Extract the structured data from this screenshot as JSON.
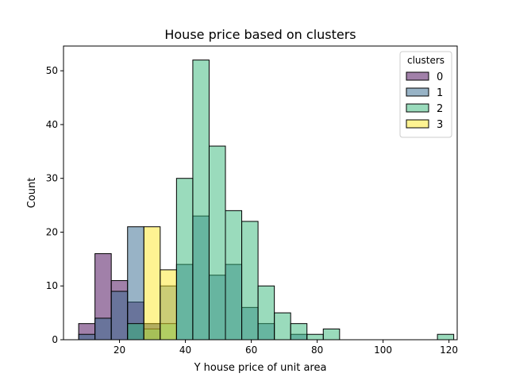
{
  "chart_data": {
    "type": "histogram",
    "title": "House price based on clusters",
    "xlabel": "Y house price of unit area",
    "ylabel": "Count",
    "xlim": [
      3.0,
      122.5
    ],
    "ylim": [
      0,
      54.6
    ],
    "xticks": [
      20,
      40,
      60,
      80,
      100,
      120
    ],
    "yticks": [
      0,
      10,
      20,
      30,
      40,
      50
    ],
    "bin_edges": [
      7.6,
      12.55,
      17.5,
      22.45,
      27.4,
      32.35,
      37.3,
      42.25,
      47.2,
      52.15,
      57.1,
      62.05,
      67.0,
      71.95,
      76.9,
      81.85,
      86.8,
      91.75,
      96.7,
      101.65,
      106.6,
      111.55,
      116.5,
      121.45
    ],
    "legend": {
      "title": "clusters",
      "placement": "top-right"
    },
    "series": [
      {
        "name": "0",
        "color": "#440154",
        "counts": [
          3,
          16,
          11,
          7,
          3,
          0,
          0,
          0,
          0,
          0,
          0,
          0,
          0,
          0,
          0,
          0,
          0,
          0,
          0,
          0,
          0,
          0,
          0
        ]
      },
      {
        "name": "1",
        "color": "#31688e",
        "counts": [
          1,
          4,
          9,
          21,
          3,
          10,
          14,
          23,
          12,
          14,
          6,
          3,
          0,
          1,
          0,
          0,
          0,
          0,
          0,
          0,
          0,
          0,
          0
        ]
      },
      {
        "name": "2",
        "color": "#35b779",
        "counts": [
          0,
          0,
          0,
          3,
          2,
          3,
          30,
          52,
          36,
          24,
          22,
          10,
          5,
          3,
          1,
          2,
          0,
          0,
          0,
          0,
          0,
          0,
          1
        ]
      },
      {
        "name": "3",
        "color": "#fde725",
        "counts": [
          0,
          0,
          0,
          0,
          21,
          13,
          0,
          0,
          0,
          0,
          0,
          0,
          0,
          0,
          0,
          0,
          0,
          0,
          0,
          0,
          0,
          0,
          0
        ]
      }
    ]
  }
}
